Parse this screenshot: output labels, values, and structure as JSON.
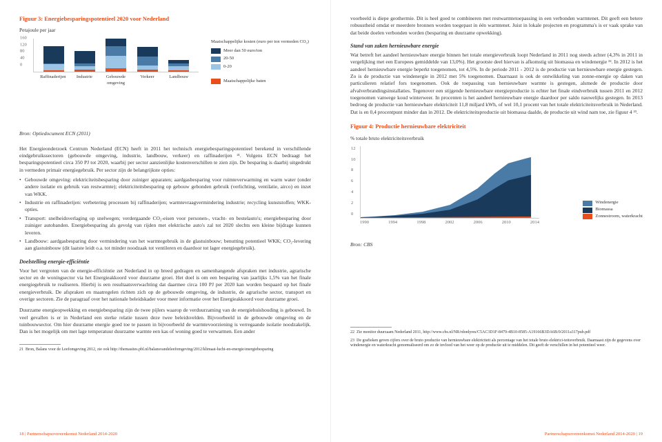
{
  "left": {
    "fig3": {
      "title": "Figuur 3: Energiebesparingspotentieel 2020 voor Nederland",
      "unit": "Petajoule per jaar",
      "yticks": [
        "160",
        "120",
        "80",
        "40",
        "0"
      ],
      "categories": [
        "Raffinaderijen",
        "Industrie",
        "Gebouwde omgeving",
        "Verkeer",
        "Landbouw"
      ],
      "bars": [
        {
          "base": 3,
          "c": 14,
          "b": 16,
          "a": 48
        },
        {
          "base": 4,
          "c": 10,
          "b": 16,
          "a": 38
        },
        {
          "base": 6,
          "c": 30,
          "b": 48,
          "a": 62
        },
        {
          "base": 4,
          "c": 12,
          "b": 28,
          "a": 46
        },
        {
          "base": 2,
          "c": 10,
          "b": 16,
          "a": 22
        }
      ],
      "legend_head": "Maatschappelijke kosten\n(euro per ton vermeden CO₂)",
      "legend": [
        {
          "color": "#1a3a5c",
          "label": "Meer dan 50 euro/ton"
        },
        {
          "color": "#4a7ba6",
          "label": "20-50"
        },
        {
          "color": "#9cc4e4",
          "label": "0-20"
        },
        {
          "color": "#e84e1b",
          "label": "Maatschappelijke baten"
        }
      ],
      "source": "Bron: Optiedocument ECN (2011)"
    },
    "para1": "Het Energieonderzoek Centrum Nederland (ECN) heeft in 2011 het technisch energiebesparingspotentieel berekend in verschillende eindgebruikssectoren (gebouwde omgeving, industrie, landbouw, verkeer) en raffinaderijen ²¹. Volgens ECN bedraagt het besparingspotentieel circa 350 PJ tot 2020, waarbij per sector aanzienlijke kostenverschillen te zien zijn. De besparing is daarbij uitgedrukt in vermeden primair energiegebruik. Per sector zijn de belangrijkste opties:",
    "bullets": [
      "Gebouwde omgeving: elektriciteitsbesparing door zuiniger apparaten; aardgasbesparing voor ruimteverwarming en warm water (onder andere isolatie en gebruik van restwarmte); elektriciteitsbesparing op gebouw gebonden gebruik (verlichting, ventilatie, airco) en inzet van WKK.",
      "Industrie en raffinaderijen: verbetering processen bij raffinaderijen; warmtevraagvermindering industrie; recycling kunststoffen; WKK-opties.",
      "Transport: snelheidsverlaging op snelwegen; verdergaande CO₂-eisen voor personen-, vracht- en bestelauto's; energiebesparing door zuiniger autobanden. Energiebesparing als gevolg van rijden met elektrische auto's zal tot 2020 slechts een kleine bijdrage kunnen leveren.",
      "Landbouw: aardgasbesparing door vermindering van het warmtegebruik in de glastuinbouw; benutting potentieel WKK; CO₂-levering aan glastuinbouw (dit laatste leidt o.a. tot minder noodzaak tot ventileren en daardoor tot lager energiegebruik)."
    ],
    "sub1": "Doelstelling energie-efficiëntie",
    "para2": "Voor het vergroten van de energie-efficiëntie zet Nederland in op breed gedragen en samenhangende afspraken met industrie, agrarische sector en de woningsector via het Energieakkoord voor duurzame groei. Het doel is om een besparing van jaarlijks 1,5% van het finale energiegebruik te realiseren. Hierbij is een resultaatsverwachting dat daarmee circa 100 PJ per 2020 kan worden bespaard op het finale energieverbruik. De afspraken en maatregelen richten zich op de gebouwde omgeving, de industrie, de agrarische sector, transport en overige sectoren. Zie de paragraaf over het nationale beleidskader voor meer informatie over het Energieakkoord voor duurzame groei.",
    "para3": "Duurzame energieopwekking en energiebesparing zijn de twee pijlers waarop de verduurzaming van de energiehuishouding is gebouwd. In veel gevallen is er in Nederland een sterke relatie tussen deze twee beleidsvelden. Bijvoorbeeld in de gebouwde omgeving en de tuinbouwsector. Om hier duurzame energie goed toe te passen in bijvoorbeeld de warmtevoorziening is verregaande isolatie noodzakelijk. Dan is het mogelijk om met lage temperatuur duurzame warmte een kas of woning goed te verwarmen. Een ander",
    "fn_num": "21",
    "fn_text": "Bron, Balans voor de Leefomgeving 2012, zie ook http://themasites.pbl.nl/balansvandeleefomgeving/2012/klimaat-lucht-en-energie/energiebesparing",
    "footer": "18  |  Partnerschapsovereenkomst Nederland 2014-2020"
  },
  "right": {
    "para1": "voorbeeld is diepe geothermie. Dit is heel goed te combineren met restwarmtetoepassing in een verbonden warmtenet. Dit geeft een betere robuustheid omdat er meerdere bronnen worden toegepast in één warmtenet. Juist in lokale projecten en programma's is er vaak sprake van dat beide doelen verbonden worden (besparing en duurzame opwekking).",
    "sub1": "Stand van zaken hernieuwbare energie",
    "para2": "Wat betreft het aandeel hernieuwbare energie binnen het totale energieverbruik loopt Nederland in 2011 nog steeds achter (4,3% in 2011 in vergelijking met een Europees gemiddelde van 13,0%). Het grootste deel hiervan is afkomstig uit biomassa en windenergie ²². In 2012 is het aandeel hernieuwbare energie beperkt toegenomen, tot 4,5%. In de periode 2011 - 2012 is de productie van hernieuwbare energie gestegen. Zo is de productie van windenergie in 2012 met 5% toegenomen. Daarnaast is ook de ontwikkeling van zonne-energie op daken van particulieren relatief fors toegenomen. Ook de toepassing van hernieuwbare warmte is gestegen, alsmede de productie door afvalverbrandingsinstallaties. Tegenover een stijgende hernieuwbare energieproductie is echter het finale eindverbruik tussen 2011 en 2012 toegenomen vanwege koud winterweer. In procenten is het aandeel hernieuwbare energie daardoor per saldo nauwelijks gestegen. In 2013 bedroeg de productie van hernieuwbare elektriciteit 11,8 miljard kWh, of wel 10,1 procent van het totale elektriciteitsverbruik in Nederland. Dat is en 0,4 procentpunt minder dan in 2012. De elektriciteitsproductie uit biomassa daalde, de productie uit wind nam toe, zie figuur 4 ²³.",
    "fig4": {
      "title": "Figuur 4: Productie hernieuwbare elektriciteit",
      "unit": "% totale bruto elektriciteitsverbruik",
      "yticks": [
        "0",
        "2",
        "4",
        "6",
        "8",
        "10",
        "12"
      ],
      "xticks": [
        "1990",
        "1994",
        "1998",
        "2002",
        "2006",
        "2010",
        "2014"
      ],
      "legend": [
        {
          "color": "#4a7ba6",
          "label": "Windenergie"
        },
        {
          "color": "#1a3a5c",
          "label": "Biomassa"
        },
        {
          "color": "#e84e1b",
          "label": "Zonnestroom, waterkracht"
        }
      ],
      "source": "Bron: CBS"
    },
    "fn22_num": "22",
    "fn22": "Zie monitor duurzaam Nederland 2011, http://www.cbs.nl/NR/rdonlyres/C5AC3D1F-8479-4B10-8585-A19166B3DA6B/0/2011a317pub.pdf",
    "fn23_num": "23",
    "fn23": "De grafieken geven cijfers over de bruto productie van hernieuwbare elektriciteit als percentage van het totale bruto elektrici-teitsverbruik. Daarnaast zijn de gegevens over windenergie en waterkracht genormaliseerd om zo de invloed van het weer op de productie uit te middelen. Dit geeft de verschillen in het potentieel weer.",
    "footer": "Partnerschapsovereenkomst Nederland 2014-2020  |  19"
  }
}
